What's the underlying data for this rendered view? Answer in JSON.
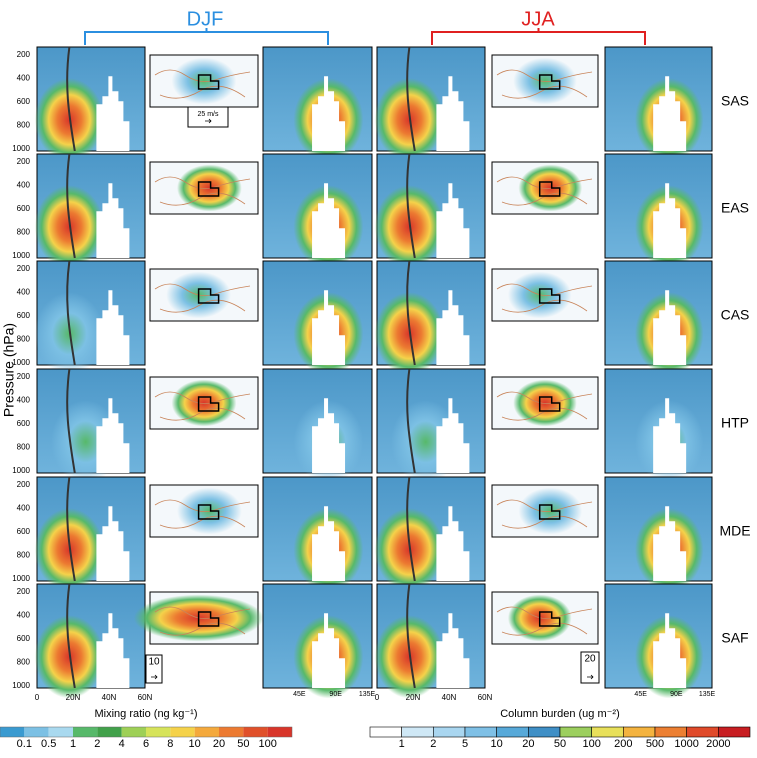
{
  "figure": {
    "seasons": [
      {
        "label": "DJF",
        "color": "#2b8fe0"
      },
      {
        "label": "JJA",
        "color": "#e02020"
      }
    ],
    "rows": [
      {
        "label": "SAS"
      },
      {
        "label": "EAS"
      },
      {
        "label": "CAS"
      },
      {
        "label": "HTP"
      },
      {
        "label": "MDE"
      },
      {
        "label": "SAF"
      }
    ],
    "y_axis_title": "Pressure (hPa)",
    "pressure_ticks": [
      "200",
      "400",
      "600",
      "800",
      "1000"
    ],
    "lat_ticks": [
      "0",
      "20N",
      "40N",
      "60N"
    ],
    "lon_ticks": [
      "45E",
      "90E",
      "135E"
    ],
    "vector_refs": [
      "25 m/s",
      "10",
      "20"
    ],
    "left_colorbar": {
      "title": "Mixing ratio (ng kg⁻¹)",
      "labels": [
        "0.1",
        "0.5",
        "1",
        "2",
        "4",
        "6",
        "8",
        "10",
        "20",
        "50",
        "100"
      ],
      "colors": [
        "#3a9ad0",
        "#7cc0e4",
        "#a9d9ef",
        "#57b96a",
        "#41a14a",
        "#9ed056",
        "#d6e35a",
        "#f5d24a",
        "#f4a93c",
        "#ec7a31",
        "#e0502a",
        "#d8352a"
      ]
    },
    "right_colorbar": {
      "title": "Column burden (ug m⁻²)",
      "labels": [
        "1",
        "2",
        "5",
        "10",
        "20",
        "50",
        "100",
        "200",
        "500",
        "1000",
        "2000"
      ],
      "colors": [
        "#ffffff",
        "#cfe8f6",
        "#a9d6f0",
        "#7fc0e6",
        "#57a9d9",
        "#3f8fc6",
        "#9ccf5e",
        "#e8e05a",
        "#f4b33f",
        "#ec7f32",
        "#e04a2a",
        "#c81e22"
      ]
    }
  }
}
